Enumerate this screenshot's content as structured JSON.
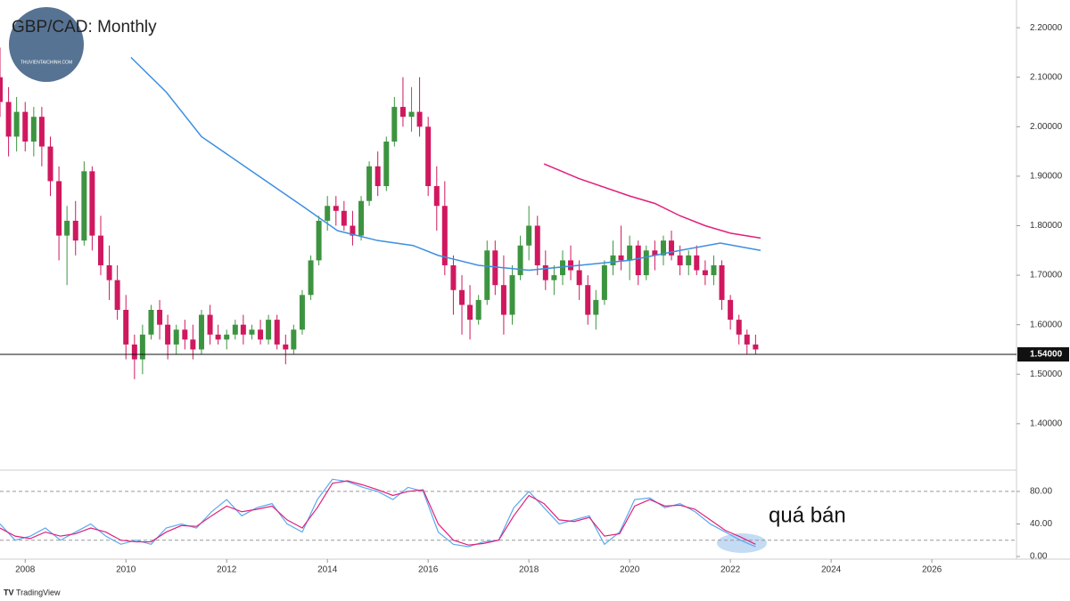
{
  "chart_data": [
    {
      "type": "candlestick",
      "title": "GBP/CAD: Monthly",
      "watermark": "THUVIENTAICHINH.COM",
      "up_color": "#3d9440",
      "down_color": "#d0185f",
      "x": [
        2007.5,
        2007.67,
        2007.83,
        2008.0,
        2008.17,
        2008.33,
        2008.5,
        2008.67,
        2008.83,
        2009.0,
        2009.17,
        2009.33,
        2009.5,
        2009.67,
        2009.83,
        2010.0,
        2010.17,
        2010.33,
        2010.5,
        2010.67,
        2010.83,
        2011.0,
        2011.17,
        2011.33,
        2011.5,
        2011.67,
        2011.83,
        2012.0,
        2012.17,
        2012.33,
        2012.5,
        2012.67,
        2012.83,
        2013.0,
        2013.17,
        2013.33,
        2013.5,
        2013.67,
        2013.83,
        2014.0,
        2014.17,
        2014.33,
        2014.5,
        2014.67,
        2014.83,
        2015.0,
        2015.17,
        2015.33,
        2015.5,
        2015.67,
        2015.83,
        2016.0,
        2016.17,
        2016.33,
        2016.5,
        2016.67,
        2016.83,
        2017.0,
        2017.17,
        2017.33,
        2017.5,
        2017.67,
        2017.83,
        2018.0,
        2018.17,
        2018.33,
        2018.5,
        2018.67,
        2018.83,
        2019.0,
        2019.17,
        2019.33,
        2019.5,
        2019.67,
        2019.83,
        2020.0,
        2020.17,
        2020.33,
        2020.5,
        2020.67,
        2020.83,
        2021.0,
        2021.17,
        2021.33,
        2021.5,
        2021.67,
        2021.83,
        2022.0,
        2022.17,
        2022.33,
        2022.5
      ],
      "open": [
        2.1,
        2.05,
        1.98,
        2.03,
        1.97,
        2.02,
        1.96,
        1.89,
        1.78,
        1.81,
        1.77,
        1.91,
        1.78,
        1.72,
        1.69,
        1.63,
        1.56,
        1.53,
        1.58,
        1.63,
        1.6,
        1.56,
        1.59,
        1.57,
        1.55,
        1.62,
        1.58,
        1.57,
        1.58,
        1.6,
        1.58,
        1.59,
        1.57,
        1.61,
        1.56,
        1.55,
        1.59,
        1.66,
        1.73,
        1.81,
        1.84,
        1.83,
        1.8,
        1.78,
        1.85,
        1.92,
        1.88,
        1.97,
        2.04,
        2.02,
        2.03,
        2.0,
        1.88,
        1.84,
        1.72,
        1.67,
        1.64,
        1.61,
        1.65,
        1.75,
        1.68,
        1.62,
        1.7,
        1.76,
        1.8,
        1.72,
        1.69,
        1.7,
        1.73,
        1.71,
        1.68,
        1.62,
        1.65,
        1.72,
        1.74,
        1.73,
        1.76,
        1.7,
        1.75,
        1.74,
        1.77,
        1.74,
        1.72,
        1.74,
        1.71,
        1.7,
        1.72,
        1.65,
        1.61,
        1.58,
        1.56
      ],
      "high": [
        2.16,
        2.08,
        2.06,
        2.05,
        2.04,
        2.04,
        1.98,
        1.92,
        1.84,
        1.85,
        1.93,
        1.92,
        1.82,
        1.76,
        1.72,
        1.66,
        1.58,
        1.6,
        1.64,
        1.65,
        1.62,
        1.6,
        1.61,
        1.6,
        1.63,
        1.64,
        1.6,
        1.59,
        1.61,
        1.62,
        1.6,
        1.61,
        1.62,
        1.62,
        1.58,
        1.6,
        1.67,
        1.74,
        1.82,
        1.86,
        1.86,
        1.85,
        1.83,
        1.86,
        1.93,
        1.95,
        1.98,
        2.06,
        2.1,
        2.08,
        2.1,
        2.02,
        1.92,
        1.89,
        1.74,
        1.7,
        1.68,
        1.66,
        1.77,
        1.77,
        1.74,
        1.72,
        1.78,
        1.84,
        1.82,
        1.75,
        1.72,
        1.75,
        1.76,
        1.73,
        1.7,
        1.67,
        1.73,
        1.77,
        1.8,
        1.78,
        1.77,
        1.76,
        1.77,
        1.78,
        1.79,
        1.76,
        1.75,
        1.76,
        1.73,
        1.74,
        1.73,
        1.66,
        1.62,
        1.59,
        1.58
      ],
      "low": [
        2.02,
        1.94,
        1.95,
        1.95,
        1.94,
        1.92,
        1.86,
        1.73,
        1.68,
        1.74,
        1.76,
        1.75,
        1.7,
        1.65,
        1.61,
        1.53,
        1.49,
        1.5,
        1.57,
        1.57,
        1.53,
        1.54,
        1.55,
        1.53,
        1.54,
        1.56,
        1.56,
        1.55,
        1.57,
        1.56,
        1.57,
        1.56,
        1.56,
        1.55,
        1.52,
        1.54,
        1.58,
        1.65,
        1.72,
        1.79,
        1.8,
        1.79,
        1.76,
        1.77,
        1.84,
        1.86,
        1.87,
        1.96,
        2.0,
        1.99,
        1.98,
        1.86,
        1.79,
        1.7,
        1.62,
        1.58,
        1.57,
        1.6,
        1.64,
        1.66,
        1.58,
        1.6,
        1.69,
        1.73,
        1.7,
        1.67,
        1.66,
        1.68,
        1.69,
        1.65,
        1.6,
        1.59,
        1.64,
        1.7,
        1.71,
        1.69,
        1.68,
        1.69,
        1.71,
        1.72,
        1.73,
        1.7,
        1.7,
        1.7,
        1.68,
        1.68,
        1.63,
        1.59,
        1.56,
        1.54,
        1.54
      ],
      "close": [
        2.05,
        1.98,
        2.03,
        1.97,
        2.02,
        1.96,
        1.89,
        1.78,
        1.81,
        1.77,
        1.91,
        1.78,
        1.72,
        1.69,
        1.63,
        1.56,
        1.53,
        1.58,
        1.63,
        1.6,
        1.56,
        1.59,
        1.57,
        1.55,
        1.62,
        1.58,
        1.57,
        1.58,
        1.6,
        1.58,
        1.59,
        1.57,
        1.61,
        1.56,
        1.55,
        1.59,
        1.66,
        1.73,
        1.81,
        1.84,
        1.83,
        1.8,
        1.78,
        1.85,
        1.92,
        1.88,
        1.97,
        2.04,
        2.02,
        2.03,
        2.0,
        1.88,
        1.84,
        1.72,
        1.67,
        1.64,
        1.61,
        1.65,
        1.75,
        1.68,
        1.62,
        1.7,
        1.76,
        1.8,
        1.72,
        1.69,
        1.7,
        1.73,
        1.71,
        1.68,
        1.62,
        1.65,
        1.72,
        1.74,
        1.73,
        1.76,
        1.7,
        1.75,
        1.74,
        1.77,
        1.74,
        1.72,
        1.74,
        1.71,
        1.7,
        1.72,
        1.65,
        1.61,
        1.58,
        1.56,
        1.55
      ],
      "overlays": [
        {
          "color": "#3d8fe0",
          "x": [
            2010.1,
            2010.8,
            2011.5,
            2012.5,
            2013.5,
            2014.2,
            2015.0,
            2015.7,
            2016.2,
            2017.0,
            2018.0,
            2019.0,
            2020.0,
            2021.0,
            2021.8,
            2022.6
          ],
          "values": [
            2.14,
            2.07,
            1.98,
            1.91,
            1.84,
            1.79,
            1.77,
            1.76,
            1.74,
            1.72,
            1.71,
            1.72,
            1.73,
            1.75,
            1.765,
            1.75
          ]
        },
        {
          "color": "#e0207a",
          "x": [
            2018.3,
            2019.0,
            2020.0,
            2020.5,
            2021.0,
            2021.5,
            2022.0,
            2022.6
          ],
          "values": [
            1.925,
            1.895,
            1.86,
            1.845,
            1.82,
            1.8,
            1.785,
            1.775
          ]
        }
      ],
      "hline": {
        "value": 1.54,
        "label": "1.54000"
      },
      "xlim": [
        2007.5,
        2027.68
      ],
      "ylim": [
        1.308,
        2.256
      ],
      "yticks": [
        {
          "value": 1.4,
          "label": "1.40000"
        },
        {
          "value": 1.5,
          "label": "1.50000"
        },
        {
          "value": 1.6,
          "label": "1.60000"
        },
        {
          "value": 1.7,
          "label": "1.70000"
        },
        {
          "value": 1.8,
          "label": "1.80000"
        },
        {
          "value": 1.9,
          "label": "1.90000"
        },
        {
          "value": 2.0,
          "label": "2.00000"
        },
        {
          "value": 2.1,
          "label": "2.10000"
        },
        {
          "value": 2.2,
          "label": "2.20000"
        }
      ]
    },
    {
      "type": "line",
      "annotation": "quá bán",
      "footer": "TradingView",
      "x": [
        2007.5,
        2007.8,
        2008.1,
        2008.4,
        2008.7,
        2009.0,
        2009.3,
        2009.6,
        2009.9,
        2010.2,
        2010.5,
        2010.8,
        2011.1,
        2011.4,
        2011.7,
        2012.0,
        2012.3,
        2012.6,
        2012.9,
        2013.2,
        2013.5,
        2013.8,
        2014.1,
        2014.4,
        2014.7,
        2015.0,
        2015.3,
        2015.6,
        2015.9,
        2016.2,
        2016.5,
        2016.8,
        2017.1,
        2017.4,
        2017.7,
        2018.0,
        2018.3,
        2018.6,
        2018.9,
        2019.2,
        2019.5,
        2019.8,
        2020.1,
        2020.4,
        2020.7,
        2021.0,
        2021.3,
        2021.6,
        2021.9,
        2022.2,
        2022.5
      ],
      "series": [
        {
          "color": "#5aa9f0",
          "values": [
            40,
            20,
            25,
            35,
            20,
            30,
            40,
            25,
            15,
            20,
            15,
            35,
            40,
            35,
            55,
            70,
            50,
            60,
            65,
            40,
            30,
            70,
            95,
            92,
            85,
            80,
            70,
            85,
            80,
            30,
            15,
            12,
            18,
            20,
            60,
            80,
            60,
            40,
            45,
            50,
            15,
            30,
            70,
            72,
            60,
            65,
            55,
            40,
            30,
            20,
            12
          ]
        },
        {
          "color": "#e0207a",
          "values": [
            35,
            25,
            22,
            30,
            25,
            28,
            35,
            30,
            20,
            18,
            18,
            30,
            38,
            37,
            50,
            62,
            55,
            58,
            62,
            45,
            35,
            60,
            90,
            93,
            88,
            82,
            75,
            80,
            82,
            40,
            20,
            14,
            16,
            20,
            50,
            75,
            65,
            45,
            43,
            48,
            25,
            28,
            62,
            70,
            62,
            63,
            58,
            45,
            32,
            24,
            15
          ]
        }
      ],
      "levels": [
        20,
        80
      ],
      "xlim": [
        2007.5,
        2027.68
      ],
      "ylim": [
        -3.3,
        104
      ],
      "xticks": [
        2008,
        2010,
        2012,
        2014,
        2016,
        2018,
        2020,
        2022,
        2024,
        2026
      ],
      "yticks": [
        {
          "value": 0,
          "label": "0.00"
        },
        {
          "value": 40,
          "label": "40.00"
        },
        {
          "value": 80,
          "label": "80.00"
        }
      ]
    }
  ]
}
